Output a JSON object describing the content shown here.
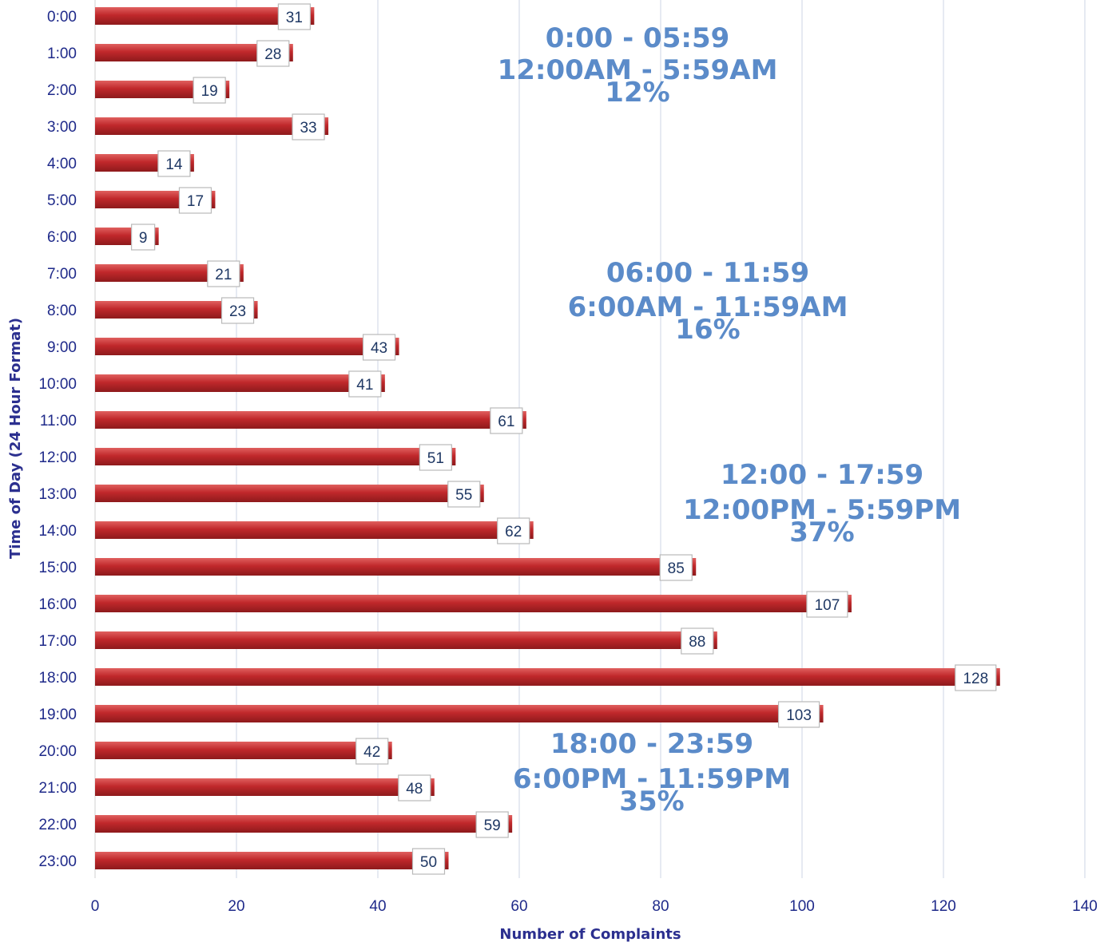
{
  "chart_data": {
    "type": "bar",
    "orientation": "horizontal",
    "xlabel": "Number of Complaints",
    "ylabel": "Time of Day (24 Hour Format)",
    "xlim": [
      0,
      140
    ],
    "xticks": [
      0,
      20,
      40,
      60,
      80,
      100,
      120,
      140
    ],
    "grid": "vertical",
    "bar_color": "#c0282b",
    "categories": [
      "0:00",
      "1:00",
      "2:00",
      "3:00",
      "4:00",
      "5:00",
      "6:00",
      "7:00",
      "8:00",
      "9:00",
      "10:00",
      "11:00",
      "12:00",
      "13:00",
      "14:00",
      "15:00",
      "16:00",
      "17:00",
      "18:00",
      "19:00",
      "20:00",
      "21:00",
      "22:00",
      "23:00"
    ],
    "values": [
      31,
      28,
      19,
      33,
      14,
      17,
      9,
      21,
      23,
      43,
      41,
      61,
      51,
      55,
      62,
      85,
      107,
      88,
      128,
      103,
      42,
      48,
      59,
      50
    ],
    "annotations": [
      {
        "lines": [
          "0:00 - 05:59",
          "12:00AM - 5:59AM",
          "12%"
        ],
        "color": "#5b8bc9"
      },
      {
        "lines": [
          "06:00 - 11:59",
          "6:00AM - 11:59AM",
          "16%"
        ],
        "color": "#5b8bc9"
      },
      {
        "lines": [
          "12:00 - 17:59",
          "12:00PM - 5:59PM",
          "37%"
        ],
        "color": "#5b8bc9"
      },
      {
        "lines": [
          "18:00 - 23:59",
          "6:00PM - 11:59PM",
          "35%"
        ],
        "color": "#5b8bc9"
      }
    ]
  }
}
